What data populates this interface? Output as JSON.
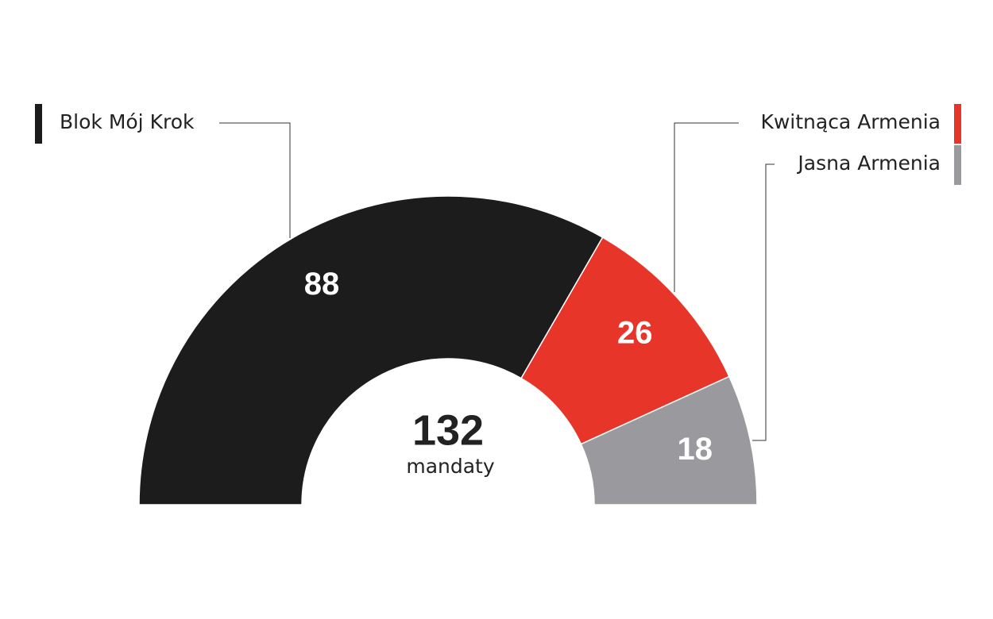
{
  "chart_data": {
    "type": "donut",
    "categories": [
      "Blok Mój Krok",
      "Kwitnąca Armenia",
      "Jasna Armenia"
    ],
    "values": [
      88,
      26,
      18
    ],
    "colors": [
      "#1c1c1c",
      "#e8352a",
      "#99999e"
    ],
    "total": 132,
    "total_label": "mandaty"
  }
}
